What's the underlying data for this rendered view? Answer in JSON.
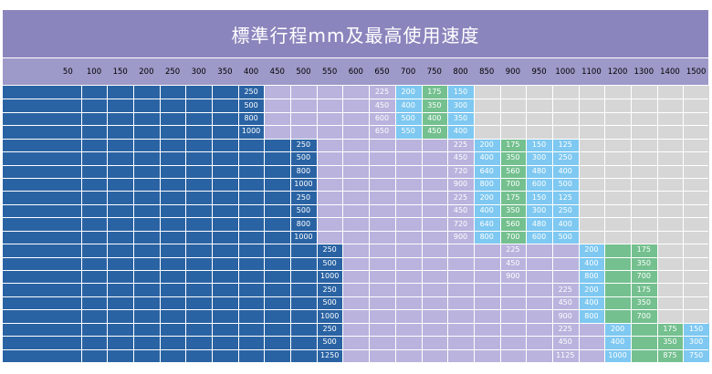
{
  "title": "標準行程mm及最高使用速度",
  "colors": {
    "title_bg": "#8b85bd",
    "header_bg": "#9d99c8",
    "stroke_blue": "#2a63a3",
    "light_purple": "#b9b3dd",
    "gray": "#d7d6d7",
    "sky": "#7ec8f1",
    "green": "#74c08f"
  },
  "chart_data": {
    "type": "table",
    "title": "標準行程mm及最高使用速度",
    "columns": [
      "50",
      "100",
      "150",
      "200",
      "250",
      "300",
      "350",
      "400",
      "450",
      "500",
      "550",
      "600",
      "650",
      "700",
      "750",
      "800",
      "850",
      "900",
      "950",
      "1000",
      "1100",
      "1200",
      "1300",
      "1400",
      "1500"
    ],
    "rows": [
      {
        "cells": [
          {
            "col": "400",
            "text": "250"
          },
          {
            "col": "650",
            "text": "225"
          },
          {
            "col": "700",
            "text": "200"
          },
          {
            "col": "750",
            "text": "175"
          },
          {
            "col": "800",
            "text": "150"
          }
        ]
      },
      {
        "cells": [
          {
            "col": "400",
            "text": "500"
          },
          {
            "col": "650",
            "text": "450"
          },
          {
            "col": "700",
            "text": "400"
          },
          {
            "col": "750",
            "text": "350"
          },
          {
            "col": "800",
            "text": "300"
          }
        ]
      },
      {
        "cells": [
          {
            "col": "400",
            "text": "800"
          },
          {
            "col": "650",
            "text": "600"
          },
          {
            "col": "700",
            "text": "500"
          },
          {
            "col": "750",
            "text": "400"
          },
          {
            "col": "800",
            "text": "350"
          }
        ]
      },
      {
        "cells": [
          {
            "col": "400",
            "text": "1000"
          },
          {
            "col": "650",
            "text": "650"
          },
          {
            "col": "700",
            "text": "550"
          },
          {
            "col": "750",
            "text": "450"
          },
          {
            "col": "800",
            "text": "400"
          }
        ]
      },
      {
        "cells": [
          {
            "col": "500",
            "text": "250"
          },
          {
            "col": "800",
            "text": "225"
          },
          {
            "col": "850",
            "text": "200"
          },
          {
            "col": "900",
            "text": "175"
          },
          {
            "col": "950",
            "text": "150"
          },
          {
            "col": "1000",
            "text": "125"
          }
        ]
      },
      {
        "cells": [
          {
            "col": "500",
            "text": "500"
          },
          {
            "col": "800",
            "text": "450"
          },
          {
            "col": "850",
            "text": "400"
          },
          {
            "col": "900",
            "text": "350"
          },
          {
            "col": "950",
            "text": "300"
          },
          {
            "col": "1000",
            "text": "250"
          }
        ]
      },
      {
        "cells": [
          {
            "col": "500",
            "text": "800"
          },
          {
            "col": "800",
            "text": "720"
          },
          {
            "col": "850",
            "text": "640"
          },
          {
            "col": "900",
            "text": "560"
          },
          {
            "col": "950",
            "text": "480"
          },
          {
            "col": "1000",
            "text": "400"
          }
        ]
      },
      {
        "cells": [
          {
            "col": "500",
            "text": "1000"
          },
          {
            "col": "800",
            "text": "900"
          },
          {
            "col": "850",
            "text": "800"
          },
          {
            "col": "900",
            "text": "700"
          },
          {
            "col": "950",
            "text": "600"
          },
          {
            "col": "1000",
            "text": "500"
          }
        ]
      },
      {
        "cells": [
          {
            "col": "500",
            "text": "250"
          },
          {
            "col": "800",
            "text": "225"
          },
          {
            "col": "850",
            "text": "200"
          },
          {
            "col": "900",
            "text": "175"
          },
          {
            "col": "950",
            "text": "150"
          },
          {
            "col": "1000",
            "text": "125"
          }
        ]
      },
      {
        "cells": [
          {
            "col": "500",
            "text": "500"
          },
          {
            "col": "800",
            "text": "450"
          },
          {
            "col": "850",
            "text": "400"
          },
          {
            "col": "900",
            "text": "350"
          },
          {
            "col": "950",
            "text": "300"
          },
          {
            "col": "1000",
            "text": "250"
          }
        ]
      },
      {
        "cells": [
          {
            "col": "500",
            "text": "800"
          },
          {
            "col": "800",
            "text": "720"
          },
          {
            "col": "850",
            "text": "640"
          },
          {
            "col": "900",
            "text": "560"
          },
          {
            "col": "950",
            "text": "480"
          },
          {
            "col": "1000",
            "text": "400"
          }
        ]
      },
      {
        "cells": [
          {
            "col": "500",
            "text": "1000"
          },
          {
            "col": "800",
            "text": "900"
          },
          {
            "col": "850",
            "text": "800"
          },
          {
            "col": "900",
            "text": "700"
          },
          {
            "col": "950",
            "text": "600"
          },
          {
            "col": "1000",
            "text": "500"
          }
        ]
      },
      {
        "cells": [
          {
            "col": "550",
            "text": "250"
          },
          {
            "col": "900",
            "text": "225"
          },
          {
            "col": "1100",
            "text": "200"
          },
          {
            "col": "1300",
            "text": "175"
          }
        ]
      },
      {
        "cells": [
          {
            "col": "550",
            "text": "500"
          },
          {
            "col": "900",
            "text": "450"
          },
          {
            "col": "1100",
            "text": "400"
          },
          {
            "col": "1300",
            "text": "350"
          }
        ]
      },
      {
        "cells": [
          {
            "col": "550",
            "text": "1000"
          },
          {
            "col": "900",
            "text": "900"
          },
          {
            "col": "1100",
            "text": "800"
          },
          {
            "col": "1300",
            "text": "700"
          }
        ]
      },
      {
        "cells": [
          {
            "col": "550",
            "text": "250"
          },
          {
            "col": "1000",
            "text": "225"
          },
          {
            "col": "1100",
            "text": "200"
          },
          {
            "col": "1300",
            "text": "175"
          }
        ]
      },
      {
        "cells": [
          {
            "col": "550",
            "text": "500"
          },
          {
            "col": "1000",
            "text": "450"
          },
          {
            "col": "1100",
            "text": "400"
          },
          {
            "col": "1300",
            "text": "350"
          }
        ]
      },
      {
        "cells": [
          {
            "col": "550",
            "text": "1000"
          },
          {
            "col": "1000",
            "text": "900"
          },
          {
            "col": "1100",
            "text": "800"
          },
          {
            "col": "1300",
            "text": "700"
          }
        ]
      },
      {
        "cells": [
          {
            "col": "550",
            "text": "250"
          },
          {
            "col": "1000",
            "text": "225"
          },
          {
            "col": "1200",
            "text": "200"
          },
          {
            "col": "1400",
            "text": "175"
          },
          {
            "col": "1500",
            "text": "150"
          }
        ]
      },
      {
        "cells": [
          {
            "col": "550",
            "text": "500"
          },
          {
            "col": "1000",
            "text": "450"
          },
          {
            "col": "1200",
            "text": "400"
          },
          {
            "col": "1400",
            "text": "350"
          },
          {
            "col": "1500",
            "text": "300"
          }
        ]
      },
      {
        "cells": [
          {
            "col": "550",
            "text": "1250"
          },
          {
            "col": "1000",
            "text": "1125"
          },
          {
            "col": "1200",
            "text": "1000"
          },
          {
            "col": "1400",
            "text": "875"
          },
          {
            "col": "1500",
            "text": "750"
          }
        ]
      }
    ],
    "bands": [
      {
        "rows": [
          0,
          3
        ],
        "segments": [
          [
            "50",
            "350",
            "stroke_blue"
          ],
          [
            "400",
            "400",
            "stroke_blue"
          ],
          [
            "450",
            "650",
            "light_purple"
          ],
          [
            "700",
            "700",
            "sky"
          ],
          [
            "750",
            "750",
            "green"
          ],
          [
            "800",
            "800",
            "sky"
          ],
          [
            "850",
            "1500",
            "gray"
          ]
        ]
      },
      {
        "rows": [
          4,
          11
        ],
        "segments": [
          [
            "50",
            "450",
            "stroke_blue"
          ],
          [
            "500",
            "500",
            "stroke_blue"
          ],
          [
            "550",
            "800",
            "light_purple"
          ],
          [
            "850",
            "850",
            "sky"
          ],
          [
            "900",
            "900",
            "green"
          ],
          [
            "950",
            "950",
            "sky"
          ],
          [
            "1000",
            "1000",
            "sky"
          ],
          [
            "1100",
            "1500",
            "gray"
          ]
        ]
      },
      {
        "rows": [
          12,
          17
        ],
        "segments": [
          [
            "50",
            "500",
            "stroke_blue"
          ],
          [
            "550",
            "550",
            "stroke_blue"
          ],
          [
            "600",
            "1000",
            "light_purple"
          ],
          [
            "1100",
            "1100",
            "sky"
          ],
          [
            "1200",
            "1300",
            "green"
          ],
          [
            "1400",
            "1500",
            "gray"
          ]
        ]
      },
      {
        "rows": [
          18,
          20
        ],
        "segments": [
          [
            "50",
            "500",
            "stroke_blue"
          ],
          [
            "550",
            "550",
            "stroke_blue"
          ],
          [
            "600",
            "1100",
            "light_purple"
          ],
          [
            "1200",
            "1200",
            "sky"
          ],
          [
            "1300",
            "1400",
            "green"
          ],
          [
            "1500",
            "1500",
            "sky"
          ]
        ]
      }
    ]
  }
}
